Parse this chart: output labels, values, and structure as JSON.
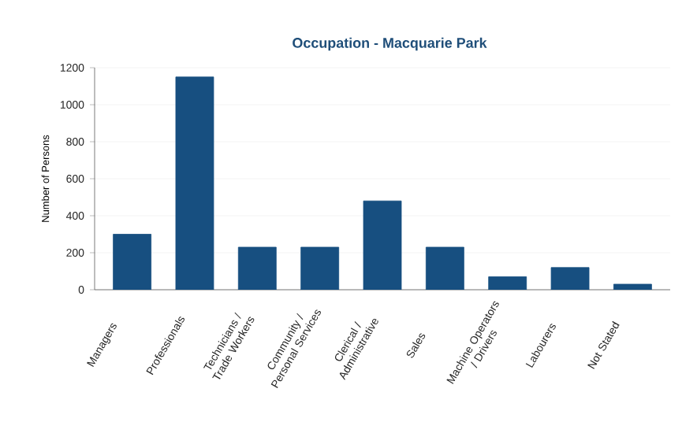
{
  "chart_data": {
    "type": "bar",
    "title": "Occupation -  Macquarie Park",
    "ylabel": "Number of Persons",
    "categories": [
      "Managers",
      "Professionals",
      "Technicians / Trade Workers",
      "Community / Personal Services",
      "Clerical / Administrative",
      "Sales",
      "Machine Operators / Drivers",
      "Labourers",
      "Not Stated"
    ],
    "values": [
      300,
      1150,
      230,
      230,
      480,
      230,
      70,
      120,
      30
    ],
    "color": "#174f80",
    "ylim": [
      0,
      1200
    ],
    "yticks": [
      0,
      200,
      400,
      600,
      800,
      1000,
      1200
    ],
    "grid": "y"
  }
}
